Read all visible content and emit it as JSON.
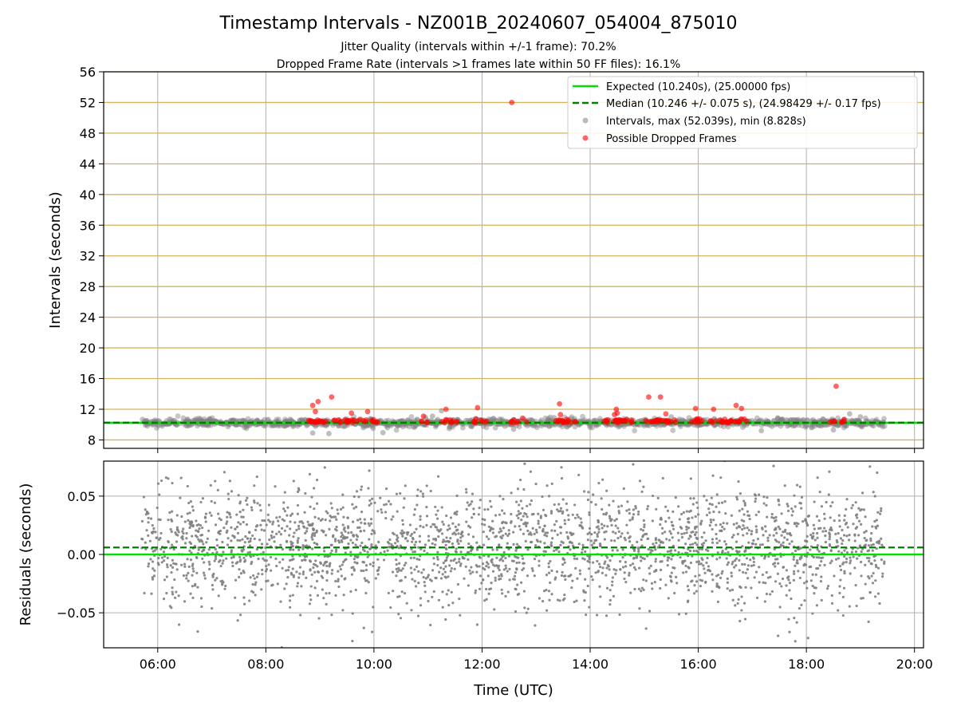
{
  "figure": {
    "title": "Timestamp Intervals - NZ001B_20240607_054004_875010",
    "subtitle_line1": "Jitter Quality (intervals within +/-1 frame): 70.2%",
    "subtitle_line2": "Dropped Frame Rate (intervals >1 frames late within 50 FF files): 16.1%",
    "xlabel": "Time (UTC)"
  },
  "colors": {
    "expected": "#00e000",
    "median": "#008000",
    "intervals": "#808080",
    "dropped": "#ff0000",
    "hgrid_top": "#d4b35a",
    "grid": "#b0b0b0"
  },
  "chart_data": [
    {
      "type": "scatter",
      "panel": "top",
      "ylabel": "Intervals (seconds)",
      "xlim": [
        "05:00",
        "20:10"
      ],
      "ylim": [
        6.9,
        56
      ],
      "x_ticks": [
        "06:00",
        "08:00",
        "10:00",
        "12:00",
        "14:00",
        "16:00",
        "18:00",
        "20:00"
      ],
      "y_ticks": [
        8,
        12,
        16,
        20,
        24,
        28,
        32,
        36,
        40,
        44,
        48,
        52,
        56
      ],
      "grid": true,
      "legend_position": "top-right",
      "legend": [
        "Expected (10.240s), (25.00000 fps)",
        "Median (10.246 +/- 0.075 s), (24.98429 +/- 0.17 fps)",
        "Intervals, max (52.039s), min (8.828s)",
        "Possible Dropped Frames"
      ],
      "series": [
        {
          "name": "Expected (10.240s), (25.00000 fps)",
          "kind": "hline",
          "y": 10.24
        },
        {
          "name": "Median (10.246 +/- 0.075 s), (24.98429 +/- 0.17 fps)",
          "kind": "hline-dashed",
          "y": 10.246
        },
        {
          "name": "Intervals, max (52.039s), min (8.828s)",
          "kind": "points",
          "x_range": [
            "05:42",
            "19:27"
          ],
          "y_center": 10.25,
          "y_spread": 0.25,
          "outliers": [
            [
              "08:52",
              8.9
            ],
            [
              "09:10",
              8.83
            ],
            [
              "10:10",
              8.95
            ],
            [
              "10:15",
              9.6
            ],
            [
              "11:05",
              11.1
            ],
            [
              "11:15",
              11.8
            ],
            [
              "12:35",
              9.4
            ],
            [
              "13:20",
              10.9
            ],
            [
              "15:30",
              11.0
            ],
            [
              "17:10",
              9.2
            ],
            [
              "18:30",
              9.3
            ],
            [
              "18:48",
              11.4
            ],
            [
              "19:00",
              11.0
            ]
          ]
        },
        {
          "name": "Possible Dropped Frames",
          "kind": "points",
          "clusters": [
            [
              "08:57",
              18
            ],
            [
              "09:25",
              8
            ],
            [
              "09:35",
              8
            ],
            [
              "09:55",
              9
            ],
            [
              "10:55",
              4
            ],
            [
              "11:23",
              10
            ],
            [
              "11:58",
              9
            ],
            [
              "12:40",
              9
            ],
            [
              "13:28",
              10
            ],
            [
              "13:37",
              6
            ],
            [
              "14:25",
              14
            ],
            [
              "14:40",
              10
            ],
            [
              "15:08",
              10
            ],
            [
              "15:22",
              8
            ],
            [
              "15:30",
              6
            ],
            [
              "15:58",
              10
            ],
            [
              "16:22",
              9
            ],
            [
              "16:35",
              6
            ],
            [
              "16:45",
              10
            ],
            [
              "18:35",
              8
            ]
          ],
          "points": [
            [
              "08:52",
              12.5
            ],
            [
              "08:55",
              11.7
            ],
            [
              "08:58",
              13.0
            ],
            [
              "09:13",
              13.6
            ],
            [
              "09:35",
              11.5
            ],
            [
              "09:53",
              11.7
            ],
            [
              "10:55",
              11.1
            ],
            [
              "11:20",
              12.0
            ],
            [
              "11:55",
              12.2
            ],
            [
              "12:33",
              52.0
            ],
            [
              "13:26",
              12.7
            ],
            [
              "13:27",
              11.3
            ],
            [
              "14:27",
              11.3
            ],
            [
              "14:29",
              12.0
            ],
            [
              "14:30",
              11.5
            ],
            [
              "15:05",
              13.6
            ],
            [
              "15:18",
              13.6
            ],
            [
              "15:24",
              11.4
            ],
            [
              "15:57",
              12.1
            ],
            [
              "16:17",
              12.0
            ],
            [
              "16:42",
              12.5
            ],
            [
              "16:48",
              12.1
            ],
            [
              "18:33",
              15.0
            ]
          ]
        }
      ]
    },
    {
      "type": "scatter",
      "panel": "bottom",
      "ylabel": "Residuals (seconds)",
      "xlim": [
        "05:00",
        "20:10"
      ],
      "ylim": [
        -0.08,
        0.08
      ],
      "x_ticks": [
        "06:00",
        "08:00",
        "10:00",
        "12:00",
        "14:00",
        "16:00",
        "18:00",
        "20:00"
      ],
      "y_ticks": [
        "−0.05",
        "0.00",
        "0.05"
      ],
      "y_tick_values": [
        -0.05,
        0.0,
        0.05
      ],
      "grid": true,
      "series": [
        {
          "name": "Expected (10.240s), (25.00000 fps)",
          "kind": "hline",
          "y": 0.0
        },
        {
          "name": "Median (10.246 +/- 0.075 s), (24.98429 +/- 0.17 fps)",
          "kind": "hline-dashed",
          "y": 0.006
        },
        {
          "name": "Residuals",
          "kind": "points",
          "x_range": [
            "05:42",
            "19:27"
          ],
          "y_center": 0.006,
          "y_spread": 0.025,
          "count": 3000
        }
      ]
    }
  ]
}
